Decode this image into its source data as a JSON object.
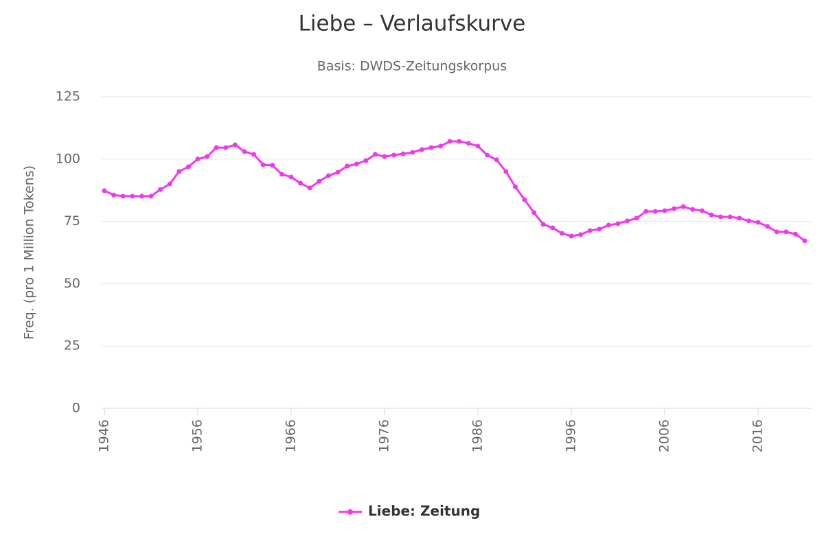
{
  "chart_data": {
    "type": "line",
    "title": "Liebe – Verlaufskurve",
    "subtitle": "Basis: DWDS-Zeitungskorpus",
    "ylabel": "Freq. (pro 1 Million Tokens)",
    "x": [
      1946,
      1947,
      1948,
      1949,
      1950,
      1951,
      1952,
      1953,
      1954,
      1955,
      1956,
      1957,
      1958,
      1959,
      1960,
      1961,
      1962,
      1963,
      1964,
      1965,
      1966,
      1967,
      1968,
      1969,
      1970,
      1971,
      1972,
      1973,
      1974,
      1975,
      1976,
      1977,
      1978,
      1979,
      1980,
      1981,
      1982,
      1983,
      1984,
      1985,
      1986,
      1987,
      1988,
      1989,
      1990,
      1991,
      1992,
      1993,
      1994,
      1995,
      1996,
      1997,
      1998,
      1999,
      2000,
      2001,
      2002,
      2003,
      2004,
      2005,
      2006,
      2007,
      2008,
      2009,
      2010,
      2011,
      2012,
      2013,
      2014,
      2015,
      2016,
      2017,
      2018,
      2019,
      2020,
      2021
    ],
    "series": [
      {
        "name": "Liebe: Zeitung",
        "color": "#ee3aee",
        "values": [
          87.3,
          85.6,
          85.1,
          85.1,
          85.1,
          85.1,
          87.8,
          90,
          95,
          96.9,
          100,
          101,
          104.6,
          104.6,
          105.7,
          103,
          101.9,
          97.7,
          97.5,
          93.9,
          92.8,
          90.3,
          88.4,
          91.1,
          93.3,
          94.7,
          97.2,
          98,
          99.4,
          101.9,
          101,
          101.6,
          102.1,
          102.7,
          103.8,
          104.6,
          105.2,
          107.1,
          107.1,
          106.3,
          105.2,
          101.6,
          99.7,
          95,
          88.9,
          83.7,
          78.5,
          73.8,
          72.4,
          70.2,
          69.1,
          69.7,
          71.3,
          71.9,
          73.5,
          74.1,
          75.2,
          76.3,
          79,
          79,
          79.3,
          80.1,
          80.9,
          79.8,
          79.3,
          77.6,
          76.8,
          76.8,
          76.3,
          75.2,
          74.6,
          73,
          70.8,
          70.8,
          69.9,
          67.2
        ]
      }
    ],
    "xlim": [
      1946,
      2021
    ],
    "xticks": [
      1946,
      1956,
      1966,
      1976,
      1986,
      1996,
      2006,
      2016
    ],
    "ylim": [
      0,
      125
    ],
    "yticks": [
      0,
      25,
      50,
      75,
      100,
      125
    ],
    "grid": true,
    "legend": "bottom"
  }
}
